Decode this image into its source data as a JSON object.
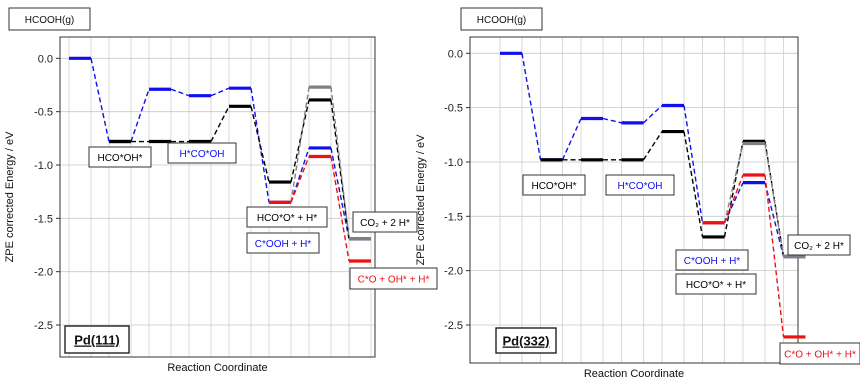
{
  "chart_data": [
    {
      "type": "line",
      "panel_title": "Pd(111)",
      "species_label": "HCOOH(g)",
      "ylabel": "ZPE corrected Energy / eV",
      "xlabel": "Reaction Coordinate",
      "ylim": [
        -2.8,
        0.2
      ],
      "yticks": [
        0.0,
        -0.5,
        -1.0,
        -1.5,
        -2.0,
        -2.5
      ],
      "ytick_labels": [
        "0.0",
        "-0.5",
        "-1.0",
        "-1.5",
        "-2.0",
        "-2.5"
      ],
      "grid": true,
      "series": [
        {
          "color": "#1010ee",
          "levels": [
            {
              "x": 0,
              "y": 0.0
            },
            {
              "x": 1,
              "y": -0.78
            },
            {
              "x": 2,
              "y": -0.29
            },
            {
              "x": 3,
              "y": -0.35
            },
            {
              "x": 4,
              "y": -0.28
            },
            {
              "x": 5,
              "y": -1.35
            },
            {
              "x": 6,
              "y": -0.84
            },
            {
              "x": 7,
              "y": -1.69
            }
          ]
        },
        {
          "color": "#000000",
          "levels": [
            {
              "x": 1,
              "y": -0.78
            },
            {
              "x": 2,
              "y": -0.78
            },
            {
              "x": 3,
              "y": -0.78
            },
            {
              "x": 4,
              "y": -0.45
            },
            {
              "x": 5,
              "y": -1.16
            },
            {
              "x": 6,
              "y": -0.39
            },
            {
              "x": 7,
              "y": -1.69
            }
          ]
        },
        {
          "color": "#808080",
          "levels": [
            {
              "x": 5,
              "y": -1.35
            },
            {
              "x": 6,
              "y": -0.27
            },
            {
              "x": 7,
              "y": -1.69
            }
          ]
        },
        {
          "color": "#ee1111",
          "levels": [
            {
              "x": 5,
              "y": -1.35
            },
            {
              "x": 6,
              "y": -0.92
            },
            {
              "x": 7,
              "y": -1.9
            }
          ]
        }
      ],
      "annotations": [
        {
          "text": "HCO*OH*",
          "color": "#000000"
        },
        {
          "text": "H*CO*OH",
          "color": "#1010ee"
        },
        {
          "text": "HCO*O* + H*",
          "color": "#000000"
        },
        {
          "text": "C*OOH + H*",
          "color": "#1010ee"
        },
        {
          "text": "CO₂ + 2 H*",
          "color": "#000000"
        },
        {
          "text": "C*O + OH* + H*",
          "color": "#ee1111"
        }
      ]
    },
    {
      "type": "line",
      "panel_title": "Pd(332)",
      "species_label": "HCOOH(g)",
      "ylabel": "ZPE corrected Energy / eV",
      "xlabel": "Reaction Coordinate",
      "ylim": [
        -2.85,
        0.15
      ],
      "yticks": [
        0.0,
        -0.5,
        -1.0,
        -1.5,
        -2.0,
        -2.5
      ],
      "ytick_labels": [
        "0.0",
        "-0.5",
        "-1.0",
        "-1.5",
        "-2.0",
        "-2.5"
      ],
      "grid": true,
      "series": [
        {
          "color": "#1010ee",
          "levels": [
            {
              "x": 0,
              "y": 0.0
            },
            {
              "x": 1,
              "y": -0.98
            },
            {
              "x": 2,
              "y": -0.6
            },
            {
              "x": 3,
              "y": -0.64
            },
            {
              "x": 4,
              "y": -0.48
            },
            {
              "x": 5,
              "y": -1.56
            },
            {
              "x": 6,
              "y": -1.19
            },
            {
              "x": 7,
              "y": -1.87
            }
          ]
        },
        {
          "color": "#000000",
          "levels": [
            {
              "x": 1,
              "y": -0.98
            },
            {
              "x": 2,
              "y": -0.98
            },
            {
              "x": 3,
              "y": -0.98
            },
            {
              "x": 4,
              "y": -0.72
            },
            {
              "x": 5,
              "y": -1.69
            },
            {
              "x": 6,
              "y": -0.81
            },
            {
              "x": 7,
              "y": -1.87
            }
          ]
        },
        {
          "color": "#808080",
          "levels": [
            {
              "x": 5,
              "y": -1.56
            },
            {
              "x": 6,
              "y": -0.83
            },
            {
              "x": 7,
              "y": -1.87
            }
          ]
        },
        {
          "color": "#ee1111",
          "levels": [
            {
              "x": 5,
              "y": -1.56
            },
            {
              "x": 6,
              "y": -1.12
            },
            {
              "x": 7,
              "y": -2.61
            }
          ]
        }
      ],
      "annotations": [
        {
          "text": "HCO*OH*",
          "color": "#000000"
        },
        {
          "text": "H*CO*OH",
          "color": "#1010ee"
        },
        {
          "text": "C*OOH + H*",
          "color": "#1010ee"
        },
        {
          "text": "HCO*O* + H*",
          "color": "#000000"
        },
        {
          "text": "CO₂ + 2 H*",
          "color": "#000000"
        },
        {
          "text": "C*O + OH* + H*",
          "color": "#ee1111"
        }
      ]
    }
  ]
}
